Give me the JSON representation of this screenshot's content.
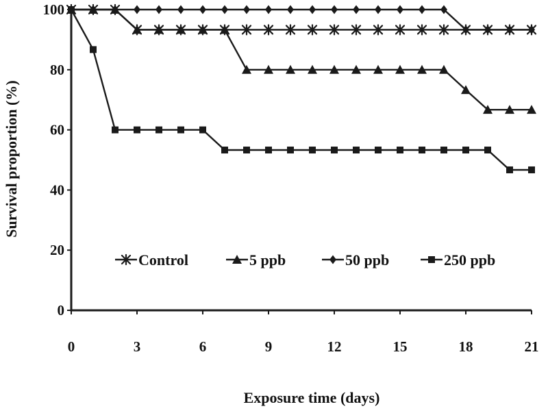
{
  "chart_data": {
    "type": "line",
    "title": "",
    "xlabel": "Exposure time (days)",
    "ylabel": "Survival proportion (%)",
    "xlim": [
      0,
      21
    ],
    "ylim": [
      0,
      100
    ],
    "xticks": [
      0,
      3,
      6,
      9,
      12,
      15,
      18,
      21
    ],
    "yticks": [
      0,
      20,
      40,
      60,
      80,
      100
    ],
    "grid": false,
    "legend_position": "inside-bottom",
    "x": [
      0,
      1,
      2,
      3,
      4,
      5,
      6,
      7,
      8,
      9,
      10,
      11,
      12,
      13,
      14,
      15,
      16,
      17,
      18,
      19,
      20,
      21
    ],
    "series": [
      {
        "name": "Control",
        "marker": "asterisk",
        "values": [
          100,
          100,
          100,
          93.3,
          93.3,
          93.3,
          93.3,
          93.3,
          93.3,
          93.3,
          93.3,
          93.3,
          93.3,
          93.3,
          93.3,
          93.3,
          93.3,
          93.3,
          93.3,
          93.3,
          93.3,
          93.3
        ]
      },
      {
        "name": "5 ppb",
        "marker": "triangle",
        "values": [
          100,
          100,
          100,
          93.3,
          93.3,
          93.3,
          93.3,
          93.3,
          80,
          80,
          80,
          80,
          80,
          80,
          80,
          80,
          80,
          80,
          73.3,
          66.7,
          66.7,
          66.7
        ]
      },
      {
        "name": "50 ppb",
        "marker": "diamond",
        "values": [
          100,
          100,
          100,
          100,
          100,
          100,
          100,
          100,
          100,
          100,
          100,
          100,
          100,
          100,
          100,
          100,
          100,
          100,
          93.3,
          93.3,
          93.3,
          93.3
        ]
      },
      {
        "name": "250 ppb",
        "marker": "square",
        "values": [
          100,
          86.7,
          60,
          60,
          60,
          60,
          60,
          53.3,
          53.3,
          53.3,
          53.3,
          53.3,
          53.3,
          53.3,
          53.3,
          53.3,
          53.3,
          53.3,
          53.3,
          53.3,
          46.7,
          46.7
        ]
      }
    ],
    "colors": {
      "line": "#1a1a1a",
      "axis": "#1a1a1a"
    }
  }
}
